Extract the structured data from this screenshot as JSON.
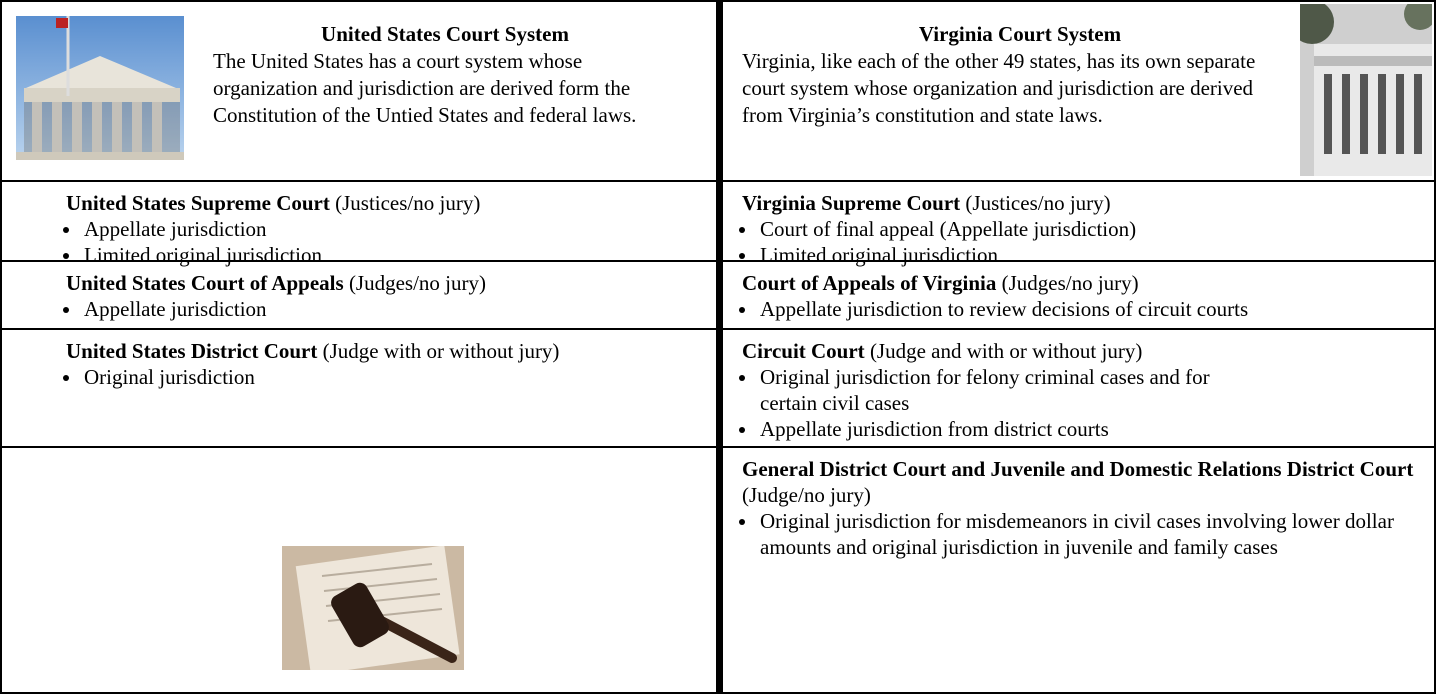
{
  "us": {
    "title": "United States Court System",
    "description": "The United States has a court system whose organization and jurisdiction are derived form the Constitution of the Untied States and federal laws.",
    "courts": [
      {
        "name": "United States Supreme Court",
        "detail": "(Justices/no jury)",
        "bullets": [
          "Appellate jurisdiction",
          "Limited original jurisdiction"
        ]
      },
      {
        "name": "United States Court of Appeals",
        "detail": "(Judges/no jury)",
        "bullets": [
          "Appellate jurisdiction"
        ]
      },
      {
        "name": "United States District Court",
        "detail": "(Judge with or without jury)",
        "bullets": [
          "Original jurisdiction"
        ]
      }
    ]
  },
  "virginia": {
    "title": "Virginia Court System",
    "description": "Virginia, like each of the other 49 states, has its own separate court system whose organization and jurisdiction are derived from Virginia’s constitution and state laws.",
    "courts": [
      {
        "name": "Virginia Supreme Court",
        "detail": "(Justices/no jury)",
        "bullets": [
          "Court of final appeal (Appellate jurisdiction)",
          "Limited original jurisdiction"
        ]
      },
      {
        "name": "Court of Appeals of Virginia",
        "detail": "(Judges/no jury)",
        "bullets": [
          "Appellate jurisdiction to review decisions of circuit courts"
        ]
      },
      {
        "name": "Circuit Court",
        "detail": "(Judge and with or without jury)",
        "bullets": [
          "Original jurisdiction for felony criminal cases and for certain civil cases",
          "Appellate jurisdiction from district courts"
        ]
      },
      {
        "name": "General District Court  and Juvenile and Domestic Relations District Court",
        "detail": "(Judge/no jury)",
        "bullets": [
          "Original jurisdiction for misdemeanors in civil cases involving lower dollar amounts and original jurisdiction in juvenile and family cases"
        ]
      }
    ]
  }
}
